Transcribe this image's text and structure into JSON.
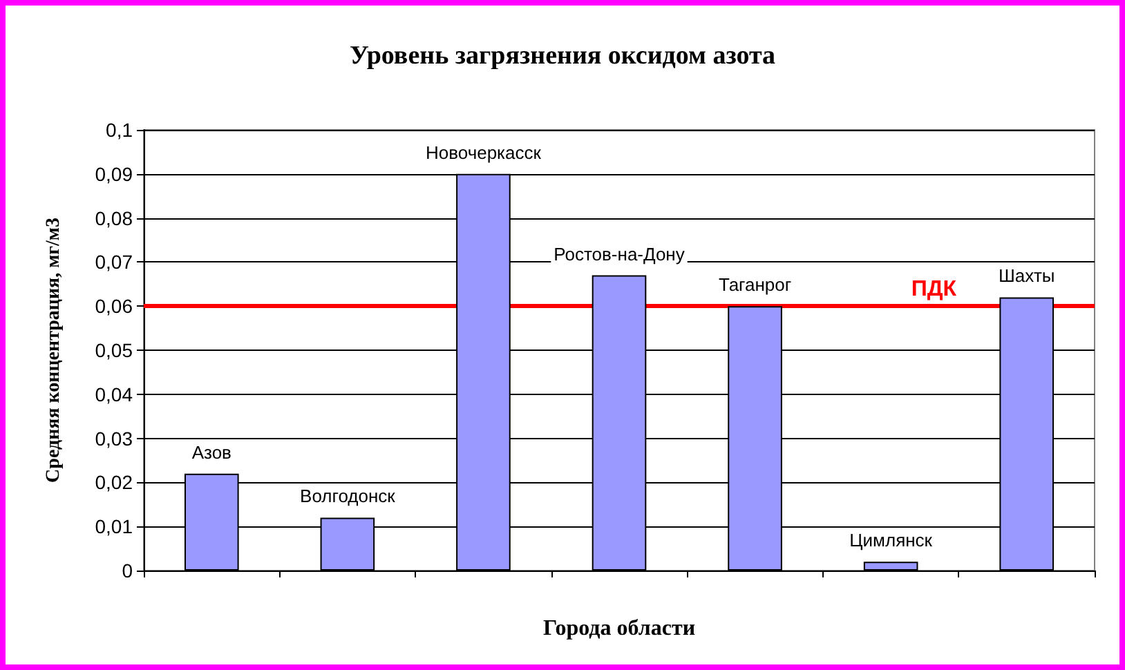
{
  "chart_data": {
    "type": "bar",
    "title": "Уровень загрязнения оксидом азота",
    "xlabel": "Города области",
    "ylabel": "Средняя концентрация, мг/м3",
    "categories": [
      "Азов",
      "Волгодонск",
      "Новочеркасск",
      "Ростов-на-Дону",
      "Таганрог",
      "Цимлянск",
      "Шахты"
    ],
    "values": [
      0.022,
      0.012,
      0.09,
      0.067,
      0.06,
      0.002,
      0.062
    ],
    "color": "#9999ff",
    "ylim": [
      0,
      0.1
    ],
    "yticks": [
      0,
      {
        "value": 0.01,
        "label": "0,01"
      },
      {
        "value": 0.02,
        "label": "0,02"
      },
      {
        "value": 0.03,
        "label": "0,03"
      },
      {
        "value": 0.04,
        "label": "0,04"
      },
      {
        "value": 0.05,
        "label": "0,05"
      },
      {
        "value": 0.06,
        "label": "0,06"
      },
      {
        "value": 0.07,
        "label": "0,07"
      },
      {
        "value": 0.08,
        "label": "0,08"
      },
      {
        "value": 0.09,
        "label": "0,09"
      },
      {
        "value": 0.1,
        "label": "0,1"
      }
    ],
    "grid": "y",
    "ref_lines": [
      {
        "axis": "y",
        "value": 0.06,
        "label": "ПДК",
        "color": "#ff0000",
        "line_style": "solid"
      }
    ]
  }
}
